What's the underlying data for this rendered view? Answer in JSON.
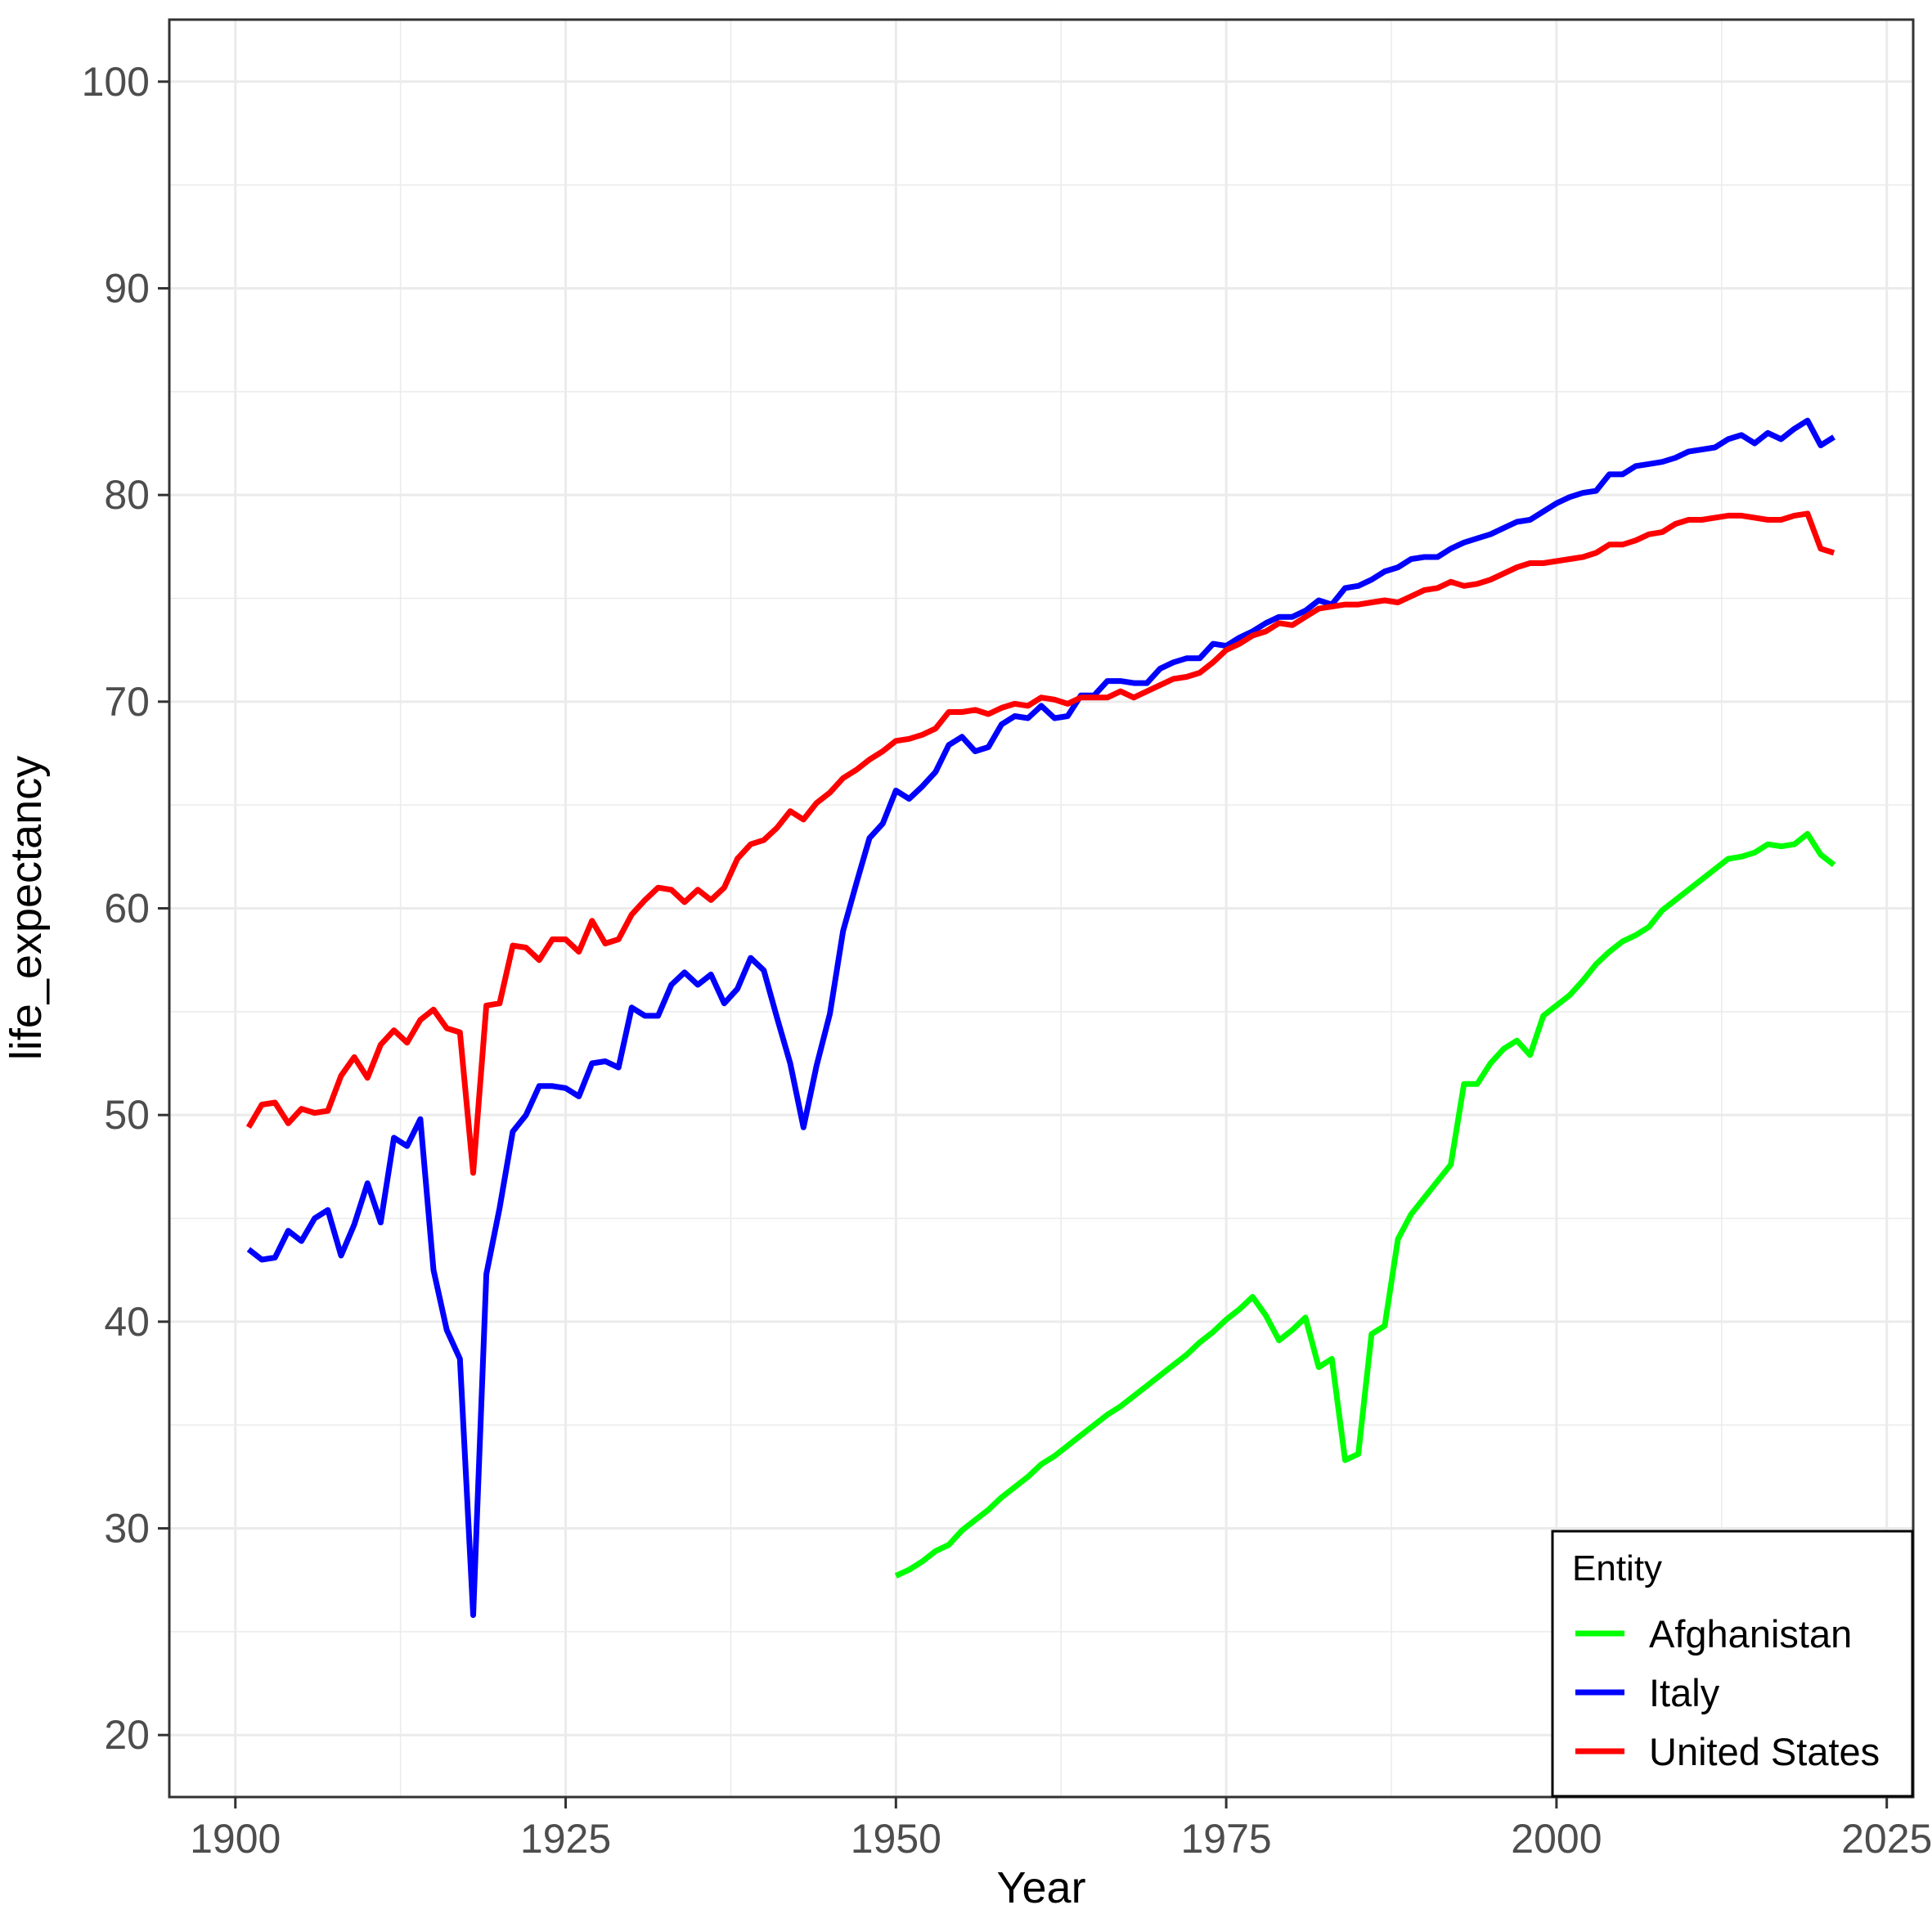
{
  "chart_data": {
    "type": "line",
    "title": "",
    "xlabel": "Year",
    "ylabel": "life_expectancy",
    "xlim": [
      1895,
      2027
    ],
    "ylim": [
      17,
      103
    ],
    "x_ticks": [
      1900,
      1925,
      1950,
      1975,
      2000,
      2025
    ],
    "y_ticks": [
      20,
      30,
      40,
      50,
      60,
      70,
      80,
      90,
      100
    ],
    "grid": true,
    "legend": {
      "title": "Entity",
      "position": "bottom-right"
    },
    "series": [
      {
        "name": "Afghanistan",
        "color": "#00ff00",
        "start_year": 1950,
        "values": [
          27.7,
          28.0,
          28.4,
          28.9,
          29.2,
          29.9,
          30.4,
          30.9,
          31.5,
          32.0,
          32.5,
          33.1,
          33.5,
          34.0,
          34.5,
          35.0,
          35.5,
          35.9,
          36.4,
          36.9,
          37.4,
          37.9,
          38.4,
          39.0,
          39.5,
          40.1,
          40.6,
          41.2,
          40.3,
          39.1,
          39.6,
          40.2,
          37.8,
          38.2,
          33.3,
          33.6,
          39.4,
          39.8,
          44.0,
          45.2,
          46.0,
          46.8,
          47.6,
          51.5,
          51.5,
          52.5,
          53.2,
          53.6,
          52.9,
          54.8,
          55.3,
          55.8,
          56.5,
          57.3,
          57.9,
          58.4,
          58.7,
          59.1,
          59.9,
          60.4,
          60.9,
          61.4,
          61.9,
          62.4,
          62.5,
          62.7,
          63.1,
          63.0,
          63.1,
          63.6,
          62.6,
          62.1
        ]
      },
      {
        "name": "Italy",
        "color": "#0000ff",
        "start_year": 1901,
        "values": [
          43.5,
          43.0,
          43.1,
          44.4,
          43.9,
          45.0,
          45.4,
          43.2,
          44.7,
          46.7,
          44.8,
          48.9,
          48.5,
          49.8,
          42.5,
          39.6,
          38.2,
          25.8,
          42.3,
          45.5,
          49.2,
          50.0,
          51.4,
          51.4,
          51.3,
          50.9,
          52.5,
          52.6,
          52.3,
          55.2,
          54.8,
          54.8,
          56.3,
          56.9,
          56.3,
          56.8,
          55.4,
          56.1,
          57.6,
          57.0,
          54.7,
          52.5,
          49.4,
          52.4,
          54.9,
          58.9,
          61.2,
          63.4,
          64.1,
          65.7,
          65.3,
          65.9,
          66.6,
          67.9,
          68.3,
          67.6,
          67.8,
          68.9,
          69.3,
          69.2,
          69.8,
          69.2,
          69.3,
          70.3,
          70.3,
          71.0,
          71.0,
          70.9,
          70.9,
          71.6,
          71.9,
          72.1,
          72.1,
          72.8,
          72.7,
          73.1,
          73.4,
          73.8,
          74.1,
          74.1,
          74.4,
          74.9,
          74.7,
          75.5,
          75.6,
          75.9,
          76.3,
          76.5,
          76.9,
          77.0,
          77.0,
          77.4,
          77.7,
          77.9,
          78.1,
          78.4,
          78.7,
          78.8,
          79.2,
          79.6,
          79.9,
          80.1,
          80.2,
          81.0,
          81.0,
          81.4,
          81.5,
          81.6,
          81.8,
          82.1,
          82.2,
          82.3,
          82.7,
          82.9,
          82.5,
          83.0,
          82.7,
          83.2,
          83.6,
          82.4,
          82.8
        ]
      },
      {
        "name": "United States",
        "color": "#ff0000",
        "start_year": 1901,
        "values": [
          49.4,
          50.5,
          50.6,
          49.6,
          50.3,
          50.1,
          50.2,
          51.9,
          52.8,
          51.8,
          53.4,
          54.1,
          53.5,
          54.6,
          55.1,
          54.2,
          54.0,
          47.2,
          55.3,
          55.4,
          58.2,
          58.1,
          57.5,
          58.5,
          58.5,
          57.9,
          59.4,
          58.3,
          58.5,
          59.7,
          60.4,
          61.0,
          60.9,
          60.3,
          60.9,
          60.4,
          61.0,
          62.4,
          63.1,
          63.3,
          63.9,
          64.7,
          64.3,
          65.1,
          65.6,
          66.3,
          66.7,
          67.2,
          67.6,
          68.1,
          68.2,
          68.4,
          68.7,
          69.5,
          69.5,
          69.6,
          69.4,
          69.7,
          69.9,
          69.8,
          70.2,
          70.1,
          69.9,
          70.2,
          70.2,
          70.2,
          70.5,
          70.2,
          70.5,
          70.8,
          71.1,
          71.2,
          71.4,
          71.9,
          72.5,
          72.8,
          73.2,
          73.4,
          73.8,
          73.7,
          74.1,
          74.5,
          74.6,
          74.7,
          74.7,
          74.8,
          74.9,
          74.8,
          75.1,
          75.4,
          75.5,
          75.8,
          75.6,
          75.7,
          75.9,
          76.2,
          76.5,
          76.7,
          76.7,
          76.8,
          76.9,
          77.0,
          77.2,
          77.6,
          77.6,
          77.8,
          78.1,
          78.2,
          78.6,
          78.8,
          78.8,
          78.9,
          79.0,
          79.0,
          78.9,
          78.8,
          78.8,
          79.0,
          79.1,
          77.4,
          77.2
        ]
      }
    ]
  }
}
